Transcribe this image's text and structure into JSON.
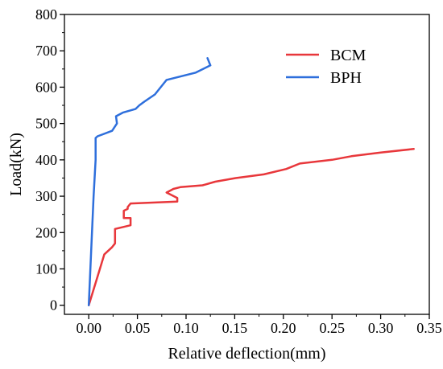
{
  "chart_data": {
    "type": "line",
    "title": "",
    "xlabel": "Relative deflection(mm)",
    "ylabel": "Load(kN)",
    "xlim": [
      -0.025,
      0.35
    ],
    "ylim": [
      -25,
      800
    ],
    "xticks": [
      0.0,
      0.05,
      0.1,
      0.15,
      0.2,
      0.25,
      0.3,
      0.35
    ],
    "xtick_labels": [
      "0.00",
      "0.05",
      "0.10",
      "0.15",
      "0.20",
      "0.25",
      "0.30",
      "0.35"
    ],
    "yticks": [
      0,
      100,
      200,
      300,
      400,
      500,
      600,
      700,
      800
    ],
    "ytick_labels": [
      "0",
      "100",
      "200",
      "300",
      "400",
      "500",
      "600",
      "700",
      "800"
    ],
    "grid": false,
    "legend": "top-right",
    "series": [
      {
        "name": "BCM",
        "color": "#e8373b",
        "x": [
          0.0,
          0.008,
          0.016,
          0.024,
          0.027,
          0.027,
          0.043,
          0.043,
          0.036,
          0.036,
          0.04,
          0.04,
          0.043,
          0.091,
          0.091,
          0.08,
          0.087,
          0.094,
          0.117,
          0.13,
          0.151,
          0.18,
          0.203,
          0.217,
          0.25,
          0.27,
          0.3,
          0.334
        ],
        "y": [
          0,
          70,
          140,
          160,
          170,
          210,
          220,
          240,
          240,
          260,
          265,
          270,
          280,
          285,
          295,
          310,
          320,
          325,
          330,
          340,
          350,
          360,
          375,
          390,
          400,
          410,
          420,
          430
        ]
      },
      {
        "name": "BPH",
        "color": "#2e6fdc",
        "x": [
          0.0,
          0.0025,
          0.005,
          0.007,
          0.007,
          0.009,
          0.024,
          0.029,
          0.028,
          0.035,
          0.048,
          0.052,
          0.057,
          0.068,
          0.08,
          0.11,
          0.125,
          0.122
        ],
        "y": [
          0,
          150,
          300,
          400,
          460,
          465,
          480,
          500,
          520,
          530,
          540,
          550,
          560,
          580,
          620,
          640,
          660,
          680
        ]
      }
    ]
  }
}
